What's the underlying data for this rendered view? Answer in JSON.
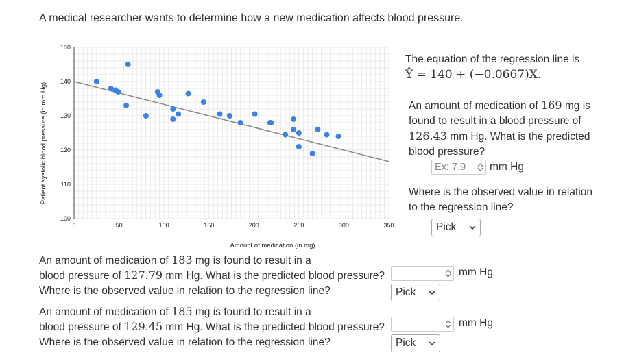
{
  "intro": "A medical researcher wants to determine how a new medication affects blood pressure.",
  "chart_data": {
    "type": "scatter",
    "title": "",
    "xlabel": "Amount of medication (in mg)",
    "ylabel": "Patient systolic blood pressure (in mm Hg)",
    "xlim": [
      0,
      350
    ],
    "ylim": [
      100,
      150
    ],
    "xticks": [
      0,
      50,
      100,
      150,
      200,
      250,
      300,
      350
    ],
    "yticks": [
      100,
      110,
      120,
      130,
      140,
      150
    ],
    "xtick_labels": [
      "0",
      "50",
      "100",
      "150",
      "200",
      "250",
      "300",
      "350"
    ],
    "ytick_labels": [
      "100",
      "110",
      "120",
      "130",
      "140",
      "150"
    ],
    "grid": true,
    "regression": {
      "intercept": 140,
      "slope": -0.0667
    },
    "points": [
      {
        "x": 25,
        "y": 140
      },
      {
        "x": 41,
        "y": 138
      },
      {
        "x": 46,
        "y": 137.5
      },
      {
        "x": 49,
        "y": 137
      },
      {
        "x": 60,
        "y": 145
      },
      {
        "x": 58,
        "y": 133
      },
      {
        "x": 80,
        "y": 130
      },
      {
        "x": 93,
        "y": 137
      },
      {
        "x": 95,
        "y": 136
      },
      {
        "x": 110,
        "y": 132
      },
      {
        "x": 110,
        "y": 129
      },
      {
        "x": 116,
        "y": 130.5
      },
      {
        "x": 127,
        "y": 136.5
      },
      {
        "x": 144,
        "y": 134
      },
      {
        "x": 162,
        "y": 130.5
      },
      {
        "x": 173,
        "y": 130
      },
      {
        "x": 185,
        "y": 128
      },
      {
        "x": 201,
        "y": 130.5
      },
      {
        "x": 218,
        "y": 128
      },
      {
        "x": 219,
        "y": 128
      },
      {
        "x": 235,
        "y": 124.5
      },
      {
        "x": 244,
        "y": 129
      },
      {
        "x": 244,
        "y": 126
      },
      {
        "x": 250,
        "y": 125
      },
      {
        "x": 250,
        "y": 121
      },
      {
        "x": 265,
        "y": 119
      },
      {
        "x": 271,
        "y": 126
      },
      {
        "x": 281,
        "y": 124.5
      },
      {
        "x": 294,
        "y": 124
      }
    ],
    "point_color": "#3c82e6",
    "line_color": "#888888"
  },
  "side": {
    "eq_prefix": "The equation of the regression line is",
    "eq_math": "Ŷ = 140 + (−0.0667)X.",
    "q1_text_a": "An amount of medication of ",
    "q1_val_a": "169",
    "q1_text_b": " mg is found to result in a blood pressure of ",
    "q1_val_b": "126.43",
    "q1_text_c": " mm Hg. What is the predicted blood pressure?",
    "q1_placeholder": "Ex: 7.9",
    "unit": "mm Hg",
    "q1_where": "Where is the observed value in relation to the regression line?",
    "pick": "Pick"
  },
  "q2": {
    "line1_a": "An amount of medication of ",
    "line1_val": "183",
    "line1_b": " mg is found to result in a",
    "line2_a": "blood pressure of ",
    "line2_val": "127.79",
    "line2_b": " mm Hg. What is the predicted blood pressure?",
    "line3": "Where is the observed value in relation to the regression line?",
    "unit": "mm Hg",
    "pick": "Pick"
  },
  "q3": {
    "line1_a": "An amount of medication of ",
    "line1_val": "185",
    "line1_b": " mg is found to result in a",
    "line2_a": "blood pressure of ",
    "line2_val": "129.45",
    "line2_b": " mm Hg. What is the predicted blood pressure?",
    "line3": "Where is the observed value in relation to the regression line?",
    "unit": "mm Hg",
    "pick": "Pick"
  }
}
